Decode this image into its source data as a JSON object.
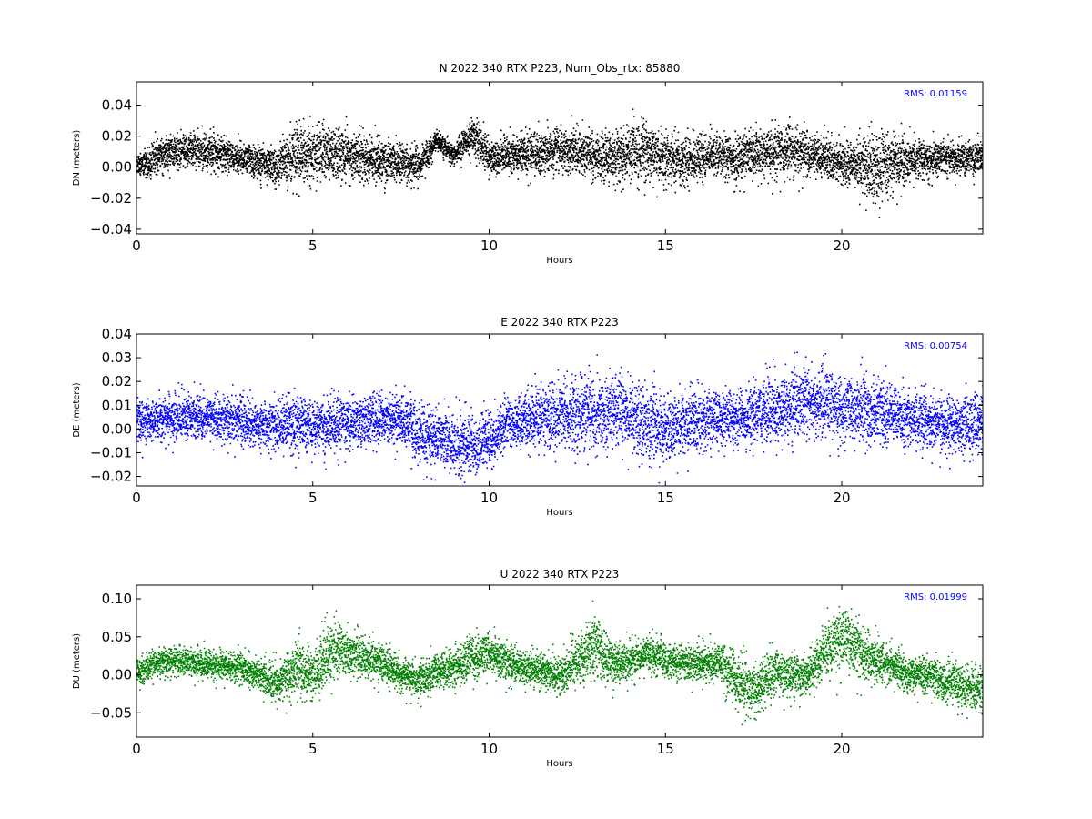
{
  "chart_data": [
    {
      "type": "scatter",
      "title": "N 2022 340 RTX  P223, Num_Obs_rtx: 85880",
      "xlabel": "Hours",
      "ylabel": "DN (meters)",
      "xlim": [
        0,
        24
      ],
      "ylim": [
        -0.043,
        0.055
      ],
      "xticks": [
        0,
        5,
        10,
        15,
        20
      ],
      "xtick_labels": [
        "0",
        "5",
        "10",
        "15",
        "20"
      ],
      "yticks": [
        -0.04,
        -0.02,
        0.0,
        0.02,
        0.04
      ],
      "ytick_labels": [
        "−0.04",
        "−0.02",
        "0.00",
        "0.02",
        "0.04"
      ],
      "annotation": "RMS:  0.01159",
      "grid": false,
      "color": "#000000",
      "series": [
        {
          "x": [
            0,
            0.5,
            1,
            1.5,
            2,
            2.5,
            3,
            3.5,
            4,
            4.5,
            5,
            5.5,
            6,
            6.5,
            7,
            7.5,
            8,
            8.5,
            9,
            9.5,
            10,
            10.5,
            11,
            11.5,
            12,
            12.5,
            13,
            13.5,
            14,
            14.5,
            15,
            15.5,
            16,
            16.5,
            17,
            17.5,
            18,
            18.5,
            19,
            19.5,
            20,
            20.5,
            21,
            21.5,
            22,
            22.5,
            23,
            23.5,
            24
          ],
          "center": [
            0.002,
            0.006,
            0.01,
            0.012,
            0.01,
            0.008,
            0.006,
            0.004,
            0.002,
            0.008,
            0.01,
            0.009,
            0.008,
            0.006,
            0.004,
            0.003,
            0.002,
            0.018,
            0.008,
            0.022,
            0.006,
            0.008,
            0.01,
            0.009,
            0.012,
            0.01,
            0.008,
            0.006,
            0.01,
            0.012,
            0.006,
            0.004,
            0.006,
            0.008,
            0.006,
            0.008,
            0.01,
            0.012,
            0.008,
            0.006,
            0.004,
            0.002,
            0.0,
            0.004,
            0.006,
            0.006,
            0.006,
            0.006,
            0.006
          ],
          "spread": [
            0.008,
            0.009,
            0.01,
            0.01,
            0.009,
            0.009,
            0.009,
            0.009,
            0.01,
            0.016,
            0.016,
            0.015,
            0.013,
            0.012,
            0.012,
            0.011,
            0.01,
            0.006,
            0.006,
            0.01,
            0.01,
            0.01,
            0.011,
            0.012,
            0.012,
            0.013,
            0.013,
            0.013,
            0.015,
            0.016,
            0.014,
            0.012,
            0.012,
            0.012,
            0.013,
            0.013,
            0.014,
            0.015,
            0.013,
            0.012,
            0.012,
            0.014,
            0.022,
            0.016,
            0.01,
            0.01,
            0.009,
            0.009,
            0.009
          ]
        }
      ]
    },
    {
      "type": "scatter",
      "title": "E 2022 340 RTX  P223",
      "xlabel": "Hours",
      "ylabel": "DE (meters)",
      "xlim": [
        0,
        24
      ],
      "ylim": [
        -0.024,
        0.04
      ],
      "xticks": [
        0,
        5,
        10,
        15,
        20
      ],
      "xtick_labels": [
        "0",
        "5",
        "10",
        "15",
        "20"
      ],
      "yticks": [
        -0.02,
        -0.01,
        0.0,
        0.01,
        0.02,
        0.03,
        0.04
      ],
      "ytick_labels": [
        "−0.02",
        "−0.01",
        "0.00",
        "0.01",
        "0.02",
        "0.03",
        "0.04"
      ],
      "annotation": "RMS:  0.00754",
      "grid": false,
      "color": "#0000ff",
      "series": [
        {
          "x": [
            0,
            0.5,
            1,
            1.5,
            2,
            2.5,
            3,
            3.5,
            4,
            4.5,
            5,
            5.5,
            6,
            6.5,
            7,
            7.5,
            8,
            8.5,
            9,
            9.5,
            10,
            10.5,
            11,
            11.5,
            12,
            12.5,
            13,
            13.5,
            14,
            14.5,
            15,
            15.5,
            16,
            16.5,
            17,
            17.5,
            18,
            18.5,
            19,
            19.5,
            20,
            20.5,
            21,
            21.5,
            22,
            22.5,
            23,
            23.5,
            24
          ],
          "center": [
            0.003,
            0.004,
            0.005,
            0.006,
            0.005,
            0.004,
            0.003,
            0.002,
            0.002,
            0.002,
            0.002,
            0.002,
            0.003,
            0.004,
            0.004,
            0.005,
            -0.002,
            -0.004,
            -0.006,
            -0.007,
            -0.005,
            0.003,
            0.004,
            0.005,
            0.006,
            0.007,
            0.007,
            0.007,
            0.006,
            0.002,
            0.0,
            0.002,
            0.004,
            0.004,
            0.005,
            0.006,
            0.008,
            0.01,
            0.012,
            0.011,
            0.01,
            0.009,
            0.008,
            0.006,
            0.004,
            0.003,
            0.002,
            0.002,
            0.002
          ],
          "spread": [
            0.008,
            0.008,
            0.009,
            0.008,
            0.008,
            0.008,
            0.009,
            0.009,
            0.009,
            0.01,
            0.01,
            0.01,
            0.009,
            0.009,
            0.009,
            0.009,
            0.01,
            0.01,
            0.011,
            0.011,
            0.01,
            0.009,
            0.01,
            0.011,
            0.012,
            0.013,
            0.013,
            0.013,
            0.013,
            0.014,
            0.012,
            0.011,
            0.01,
            0.01,
            0.01,
            0.011,
            0.012,
            0.013,
            0.013,
            0.013,
            0.012,
            0.012,
            0.011,
            0.01,
            0.01,
            0.01,
            0.01,
            0.01,
            0.011
          ]
        }
      ]
    },
    {
      "type": "scatter",
      "title": "U 2022 340 RTX  P223",
      "xlabel": "Hours",
      "ylabel": "DU (meters)",
      "xlim": [
        0,
        24
      ],
      "ylim": [
        -0.082,
        0.118
      ],
      "xticks": [
        0,
        5,
        10,
        15,
        20
      ],
      "xtick_labels": [
        "0",
        "5",
        "10",
        "15",
        "20"
      ],
      "yticks": [
        -0.05,
        0.0,
        0.05,
        0.1
      ],
      "ytick_labels": [
        "−0.05",
        "0.00",
        "0.05",
        "0.10"
      ],
      "annotation": "RMS:  0.01999",
      "grid": false,
      "color": "#008000",
      "series": [
        {
          "x": [
            0,
            0.5,
            1,
            1.5,
            2,
            2.5,
            3,
            3.5,
            4,
            4.5,
            5,
            5.5,
            6,
            6.5,
            7,
            7.5,
            8,
            8.5,
            9,
            9.5,
            10,
            10.5,
            11,
            11.5,
            12,
            12.5,
            13,
            13.5,
            14,
            14.5,
            15,
            15.5,
            16,
            16.5,
            17,
            17.5,
            18,
            18.5,
            19,
            19.5,
            20,
            20.5,
            21,
            21.5,
            22,
            22.5,
            23,
            23.5,
            24
          ],
          "center": [
            0.005,
            0.015,
            0.02,
            0.018,
            0.015,
            0.012,
            0.008,
            0.0,
            -0.01,
            0.01,
            0.0,
            0.03,
            0.03,
            0.02,
            0.015,
            0.0,
            -0.005,
            0.005,
            0.01,
            0.025,
            0.03,
            0.015,
            0.01,
            0.005,
            0.0,
            0.02,
            0.04,
            0.015,
            0.02,
            0.03,
            0.02,
            0.015,
            0.015,
            0.02,
            -0.005,
            -0.02,
            0.0,
            0.0,
            0.0,
            0.03,
            0.05,
            0.03,
            0.02,
            0.01,
            0.0,
            0.0,
            -0.01,
            -0.015,
            -0.02
          ],
          "spread": [
            0.015,
            0.016,
            0.016,
            0.016,
            0.016,
            0.016,
            0.017,
            0.018,
            0.022,
            0.03,
            0.03,
            0.032,
            0.025,
            0.022,
            0.02,
            0.02,
            0.02,
            0.02,
            0.022,
            0.024,
            0.024,
            0.02,
            0.02,
            0.02,
            0.022,
            0.03,
            0.035,
            0.025,
            0.02,
            0.02,
            0.02,
            0.02,
            0.02,
            0.022,
            0.03,
            0.03,
            0.03,
            0.025,
            0.022,
            0.03,
            0.04,
            0.03,
            0.025,
            0.02,
            0.02,
            0.02,
            0.022,
            0.025,
            0.025
          ]
        }
      ]
    }
  ]
}
